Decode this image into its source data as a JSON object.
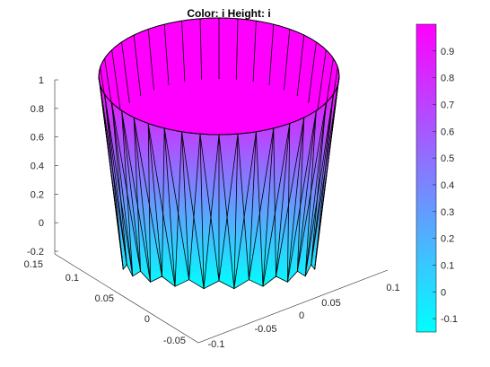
{
  "chart_data": {
    "type": "surface",
    "title": "Color: i  Height: i",
    "surface": {
      "shape": "cylinder",
      "radius": 0.1,
      "center": [
        0.0,
        0.0
      ],
      "height_range": [
        -0.2,
        1.0
      ],
      "zigzag_segments": 20,
      "colormap": "cool",
      "colors": {
        "low": "#00ffff",
        "high": "#ff00ff"
      }
    },
    "axes": {
      "z": {
        "ticks": [
          "-0.2",
          "0",
          "0.2",
          "0.4",
          "0.6",
          "0.8",
          "1"
        ],
        "lim": [
          -0.2,
          1.0
        ]
      },
      "y": {
        "ticks": [
          "-0.05",
          "0",
          "0.05",
          "0.1",
          "0.15"
        ]
      },
      "x": {
        "ticks": [
          "-0.1",
          "-0.05",
          "0",
          "0.05",
          "0.1"
        ]
      }
    },
    "colorbar": {
      "ticks": [
        "-0.1",
        "0",
        "0.1",
        "0.2",
        "0.3",
        "0.4",
        "0.5",
        "0.6",
        "0.7",
        "0.8",
        "0.9"
      ],
      "lim": [
        -0.15,
        1.0
      ]
    }
  }
}
